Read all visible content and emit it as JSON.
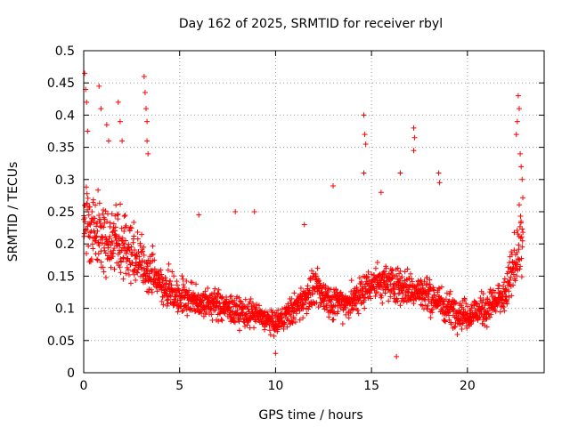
{
  "chart_data": {
    "type": "scatter",
    "title": "Day 162 of 2025, SRMTID for receiver rbyl",
    "xlabel": "GPS time / hours",
    "ylabel": "SRMTID / TECUs",
    "xlim": [
      0,
      24
    ],
    "ylim": [
      0,
      0.5
    ],
    "xticks": [
      "0",
      "5",
      "10",
      "15",
      "20"
    ],
    "yticks": [
      "0",
      "0.05",
      "0.1",
      "0.15",
      "0.2",
      "0.25",
      "0.3",
      "0.35",
      "0.4",
      "0.45",
      "0.5"
    ],
    "grid": true,
    "marker": "+",
    "color": "#ff0000",
    "series": [
      {
        "x_range": [
          0,
          22.9
        ],
        "envelope": [
          {
            "x": 0.0,
            "y": 0.23,
            "spread": 0.1
          },
          {
            "x": 1.0,
            "y": 0.21,
            "spread": 0.1
          },
          {
            "x": 2.0,
            "y": 0.2,
            "spread": 0.09
          },
          {
            "x": 3.0,
            "y": 0.17,
            "spread": 0.07
          },
          {
            "x": 4.0,
            "y": 0.14,
            "spread": 0.05
          },
          {
            "x": 5.0,
            "y": 0.12,
            "spread": 0.05
          },
          {
            "x": 6.0,
            "y": 0.11,
            "spread": 0.04
          },
          {
            "x": 7.0,
            "y": 0.105,
            "spread": 0.04
          },
          {
            "x": 8.0,
            "y": 0.095,
            "spread": 0.04
          },
          {
            "x": 9.0,
            "y": 0.09,
            "spread": 0.035
          },
          {
            "x": 10.0,
            "y": 0.075,
            "spread": 0.03
          },
          {
            "x": 11.0,
            "y": 0.1,
            "spread": 0.04
          },
          {
            "x": 12.0,
            "y": 0.13,
            "spread": 0.05
          },
          {
            "x": 13.0,
            "y": 0.11,
            "spread": 0.045
          },
          {
            "x": 14.0,
            "y": 0.11,
            "spread": 0.045
          },
          {
            "x": 15.0,
            "y": 0.14,
            "spread": 0.05
          },
          {
            "x": 16.0,
            "y": 0.14,
            "spread": 0.05
          },
          {
            "x": 17.0,
            "y": 0.13,
            "spread": 0.05
          },
          {
            "x": 18.0,
            "y": 0.12,
            "spread": 0.05
          },
          {
            "x": 19.0,
            "y": 0.1,
            "spread": 0.045
          },
          {
            "x": 20.0,
            "y": 0.09,
            "spread": 0.04
          },
          {
            "x": 21.0,
            "y": 0.1,
            "spread": 0.045
          },
          {
            "x": 22.0,
            "y": 0.12,
            "spread": 0.05
          },
          {
            "x": 22.9,
            "y": 0.22,
            "spread": 0.1
          }
        ],
        "spikes": [
          {
            "x": 0.05,
            "y": 0.465
          },
          {
            "x": 0.1,
            "y": 0.44
          },
          {
            "x": 0.15,
            "y": 0.42
          },
          {
            "x": 0.2,
            "y": 0.375
          },
          {
            "x": 0.8,
            "y": 0.445
          },
          {
            "x": 0.9,
            "y": 0.41
          },
          {
            "x": 1.2,
            "y": 0.385
          },
          {
            "x": 1.3,
            "y": 0.36
          },
          {
            "x": 1.8,
            "y": 0.42
          },
          {
            "x": 1.9,
            "y": 0.39
          },
          {
            "x": 2.0,
            "y": 0.36
          },
          {
            "x": 3.15,
            "y": 0.46
          },
          {
            "x": 3.2,
            "y": 0.435
          },
          {
            "x": 3.25,
            "y": 0.41
          },
          {
            "x": 3.3,
            "y": 0.39
          },
          {
            "x": 3.3,
            "y": 0.36
          },
          {
            "x": 3.35,
            "y": 0.34
          },
          {
            "x": 14.6,
            "y": 0.4
          },
          {
            "x": 14.65,
            "y": 0.37
          },
          {
            "x": 14.7,
            "y": 0.355
          },
          {
            "x": 14.6,
            "y": 0.31
          },
          {
            "x": 17.2,
            "y": 0.38
          },
          {
            "x": 17.25,
            "y": 0.365
          },
          {
            "x": 17.2,
            "y": 0.345
          },
          {
            "x": 18.5,
            "y": 0.31
          },
          {
            "x": 18.55,
            "y": 0.295
          },
          {
            "x": 22.65,
            "y": 0.43
          },
          {
            "x": 22.7,
            "y": 0.41
          },
          {
            "x": 22.6,
            "y": 0.39
          },
          {
            "x": 22.55,
            "y": 0.37
          },
          {
            "x": 22.75,
            "y": 0.34
          },
          {
            "x": 22.8,
            "y": 0.32
          },
          {
            "x": 22.85,
            "y": 0.3
          },
          {
            "x": 13.0,
            "y": 0.29
          },
          {
            "x": 15.5,
            "y": 0.28
          },
          {
            "x": 16.5,
            "y": 0.31
          },
          {
            "x": 7.9,
            "y": 0.25
          },
          {
            "x": 8.9,
            "y": 0.25
          },
          {
            "x": 6.0,
            "y": 0.245
          },
          {
            "x": 11.5,
            "y": 0.23
          },
          {
            "x": 10.0,
            "y": 0.03
          },
          {
            "x": 16.3,
            "y": 0.025
          }
        ]
      }
    ]
  }
}
